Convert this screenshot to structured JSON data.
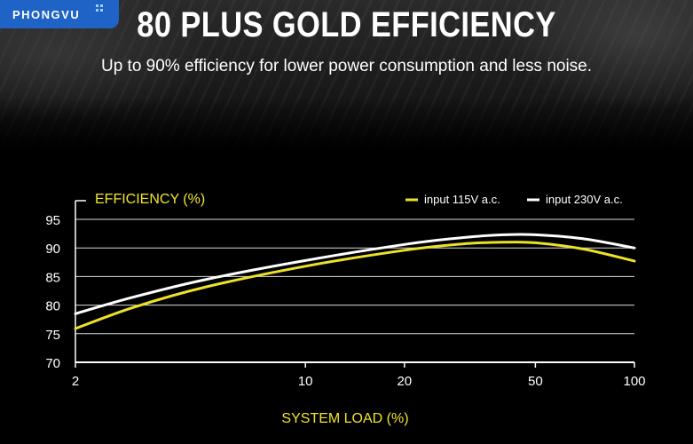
{
  "brand": {
    "name": "PHONGVU"
  },
  "header": {
    "title": "80 PLUS GOLD EFFICIENCY",
    "subtitle": "Up to 90% efficiency for lower power consumption and less noise."
  },
  "colors": {
    "series_115": "#ece12a",
    "series_230": "#ffffff",
    "label_yellow": "#f2e52c",
    "grid": "#ffffff",
    "brand_blue": "#1f63c6"
  },
  "chart_data": {
    "type": "line",
    "title": "",
    "ylabel": "EFFICIENCY (%)",
    "xlabel": "SYSTEM LOAD (%)",
    "x_scale": "log",
    "xlim": [
      2,
      100
    ],
    "ylim": [
      70,
      95
    ],
    "x_ticks": [
      2,
      10,
      20,
      50,
      100
    ],
    "y_ticks": [
      70,
      75,
      80,
      85,
      90,
      95
    ],
    "grid": true,
    "legend_position": "top-right",
    "series": [
      {
        "name": "input 115V a.c.",
        "color": "#ece12a",
        "points": [
          [
            2,
            75.9
          ],
          [
            3,
            79.6
          ],
          [
            5,
            83.2
          ],
          [
            10,
            86.8
          ],
          [
            20,
            89.6
          ],
          [
            30,
            90.7
          ],
          [
            40,
            91.0
          ],
          [
            50,
            90.9
          ],
          [
            70,
            89.8
          ],
          [
            100,
            87.7
          ]
        ]
      },
      {
        "name": "input 230V a.c.",
        "color": "#ffffff",
        "points": [
          [
            2,
            78.5
          ],
          [
            3,
            81.4
          ],
          [
            5,
            84.5
          ],
          [
            10,
            87.8
          ],
          [
            20,
            90.6
          ],
          [
            30,
            91.8
          ],
          [
            40,
            92.3
          ],
          [
            50,
            92.3
          ],
          [
            70,
            91.6
          ],
          [
            100,
            90.0
          ]
        ]
      }
    ]
  }
}
